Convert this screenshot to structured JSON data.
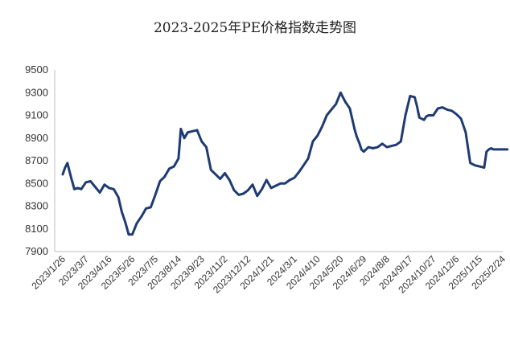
{
  "chart_data": {
    "type": "line",
    "title": "2023-2025年PE价格指数走势图",
    "xlabel": "",
    "ylabel": "",
    "ylim": [
      7900,
      9500
    ],
    "yticks": [
      7900,
      8100,
      8300,
      8500,
      8700,
      8900,
      9100,
      9300,
      9500
    ],
    "grid": false,
    "legend": "none",
    "line_color": "#1f3b73",
    "categories": [
      "2023/1/26",
      "2023/3/7",
      "2023/4/16",
      "2023/5/26",
      "2023/7/5",
      "2023/8/14",
      "2023/9/23",
      "2023/11/2",
      "2023/12/12",
      "2024/1/21",
      "2024/3/1",
      "2024/4/10",
      "2024/5/20",
      "2024/6/29",
      "2024/8/8",
      "2024/9/17",
      "2024/10/27",
      "2024/12/6",
      "2025/1/15",
      "2025/2/24"
    ],
    "series": [
      {
        "x": [
          0,
          0.1,
          0.2,
          0.35,
          0.5,
          0.65,
          0.8,
          1.0,
          1.2,
          1.4,
          1.6,
          1.8,
          2.0,
          2.2,
          2.4,
          2.55,
          2.7,
          2.85,
          3.0,
          3.2,
          3.4,
          3.6,
          3.8,
          4.0,
          4.2,
          4.4,
          4.6,
          4.8,
          5.0,
          5.1,
          5.25,
          5.4,
          5.6,
          5.8,
          6.0,
          6.2,
          6.4,
          6.6,
          6.8,
          7.0,
          7.2,
          7.4,
          7.6,
          7.8,
          8.0,
          8.2,
          8.4,
          8.6,
          8.8,
          9.0,
          9.2,
          9.4,
          9.6,
          9.8,
          10.0,
          10.2,
          10.4,
          10.6,
          10.8,
          11.0,
          11.2,
          11.4,
          11.6,
          11.8,
          12.0,
          12.2,
          12.4,
          12.6,
          12.7,
          12.8,
          12.9,
          13.0,
          13.2,
          13.4,
          13.6,
          13.8,
          14.0,
          14.2,
          14.4,
          14.6,
          14.8,
          15.0,
          15.2,
          15.3,
          15.4,
          15.5,
          15.6,
          15.7,
          15.8,
          16.0,
          16.2,
          16.4,
          16.6,
          16.8,
          17.0,
          17.2,
          17.4,
          17.6,
          17.8,
          18.0,
          18.2,
          18.3,
          18.4,
          18.5,
          18.6,
          18.8,
          19.0,
          19.2
        ],
        "values": [
          8580,
          8640,
          8680,
          8560,
          8450,
          8460,
          8450,
          8510,
          8520,
          8470,
          8420,
          8490,
          8460,
          8450,
          8380,
          8250,
          8160,
          8050,
          8050,
          8150,
          8210,
          8280,
          8290,
          8400,
          8520,
          8560,
          8630,
          8650,
          8720,
          8980,
          8900,
          8950,
          8960,
          8970,
          8870,
          8820,
          8620,
          8580,
          8540,
          8590,
          8530,
          8440,
          8400,
          8410,
          8440,
          8490,
          8390,
          8450,
          8530,
          8460,
          8480,
          8500,
          8500,
          8530,
          8550,
          8600,
          8660,
          8720,
          8870,
          8920,
          9000,
          9100,
          9150,
          9200,
          9300,
          9220,
          9160,
          8980,
          8910,
          8860,
          8800,
          8780,
          8820,
          8810,
          8820,
          8850,
          8820,
          8830,
          8840,
          8870,
          9100,
          9270,
          9260,
          9180,
          9080,
          9070,
          9060,
          9090,
          9100,
          9100,
          9160,
          9170,
          9150,
          9140,
          9110,
          9070,
          8950,
          8680,
          8660,
          8650,
          8640,
          8780,
          8800,
          8810,
          8800,
          8800,
          8800,
          8800
        ]
      }
    ]
  }
}
